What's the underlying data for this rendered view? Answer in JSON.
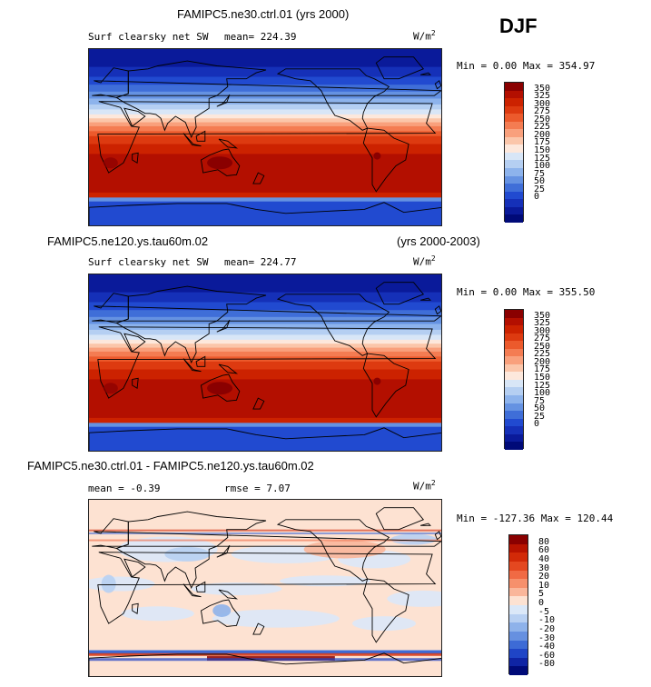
{
  "season": "DJF",
  "units": "W/m",
  "units_exp": "2",
  "panels": [
    {
      "title": "FAMIPC5.ne30.ctrl.01 (yrs 2000)",
      "case": "",
      "years": "",
      "variable": "Surf clearsky net SW",
      "mean": "mean= 224.39",
      "rmse": "",
      "minmax": "Min =   0.00 Max = 354.97",
      "map_type": "absolute"
    },
    {
      "title": "",
      "case": "FAMIPC5.ne120.ys.tau60m.02",
      "years": "(yrs 2000-2003)",
      "variable": "Surf clearsky net SW",
      "mean": "mean= 224.77",
      "rmse": "",
      "minmax": "Min =   0.00 Max = 355.50",
      "map_type": "absolute"
    },
    {
      "title": "FAMIPC5.ne30.ctrl.01 - FAMIPC5.ne120.ys.tau60m.02",
      "case": "",
      "years": "",
      "variable": "",
      "mean": "mean =  -0.39",
      "rmse": "rmse =   7.07",
      "minmax": "Min = -127.36 Max = 120.44",
      "map_type": "difference"
    }
  ],
  "colorbars": {
    "absolute": {
      "labels": [
        "350",
        "325",
        "300",
        "275",
        "250",
        "225",
        "200",
        "175",
        "150",
        "125",
        "100",
        "75",
        "50",
        "25",
        "0"
      ],
      "colors": [
        "#8a0000",
        "#b30f00",
        "#cc2200",
        "#dd3a10",
        "#ec5a2c",
        "#f47c52",
        "#f9a07c",
        "#fbc6aa",
        "#fde8dc",
        "#d8e6f7",
        "#b5cff2",
        "#8db3ec",
        "#6592e2",
        "#3f6ed8",
        "#214ad0",
        "#1530b8",
        "#0a1a9a",
        "#000a78"
      ]
    },
    "difference": {
      "labels": [
        "80",
        "60",
        "40",
        "30",
        "20",
        "10",
        "5",
        "0",
        "-5",
        "-10",
        "-20",
        "-30",
        "-40",
        "-60",
        "-80"
      ],
      "colors": [
        "#8a0000",
        "#b81300",
        "#d22a08",
        "#e44820",
        "#f06a44",
        "#f6906c",
        "#fab69a",
        "#fde2d2",
        "#dbe8f8",
        "#b8d0f2",
        "#8eb2ea",
        "#6690e0",
        "#3d6bd6",
        "#1f45c6",
        "#0f24a4",
        "#000a78"
      ]
    }
  }
}
